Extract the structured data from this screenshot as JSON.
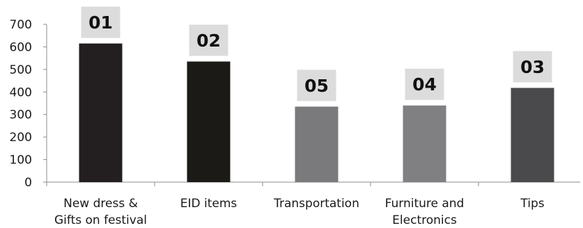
{
  "chart_data": {
    "type": "bar",
    "title": "",
    "xlabel": "",
    "ylabel": "",
    "ylim": [
      0,
      700
    ],
    "yticks": [
      0,
      100,
      200,
      300,
      400,
      500,
      600,
      700
    ],
    "grid": false,
    "categories": [
      [
        "New dress &",
        "Gifts on festival"
      ],
      [
        "EID items"
      ],
      [
        "Transportation"
      ],
      [
        "Furniture and",
        "Electronics"
      ],
      [
        "Tips"
      ]
    ],
    "values": [
      615,
      535,
      335,
      340,
      418
    ],
    "rank_labels": [
      "01",
      "02",
      "05",
      "04",
      "03"
    ],
    "bar_colors": [
      "#231f20",
      "#1c1a16",
      "#7a7a7c",
      "#808082",
      "#4a4a4c"
    ],
    "badge_color": "#dcdcdc"
  }
}
